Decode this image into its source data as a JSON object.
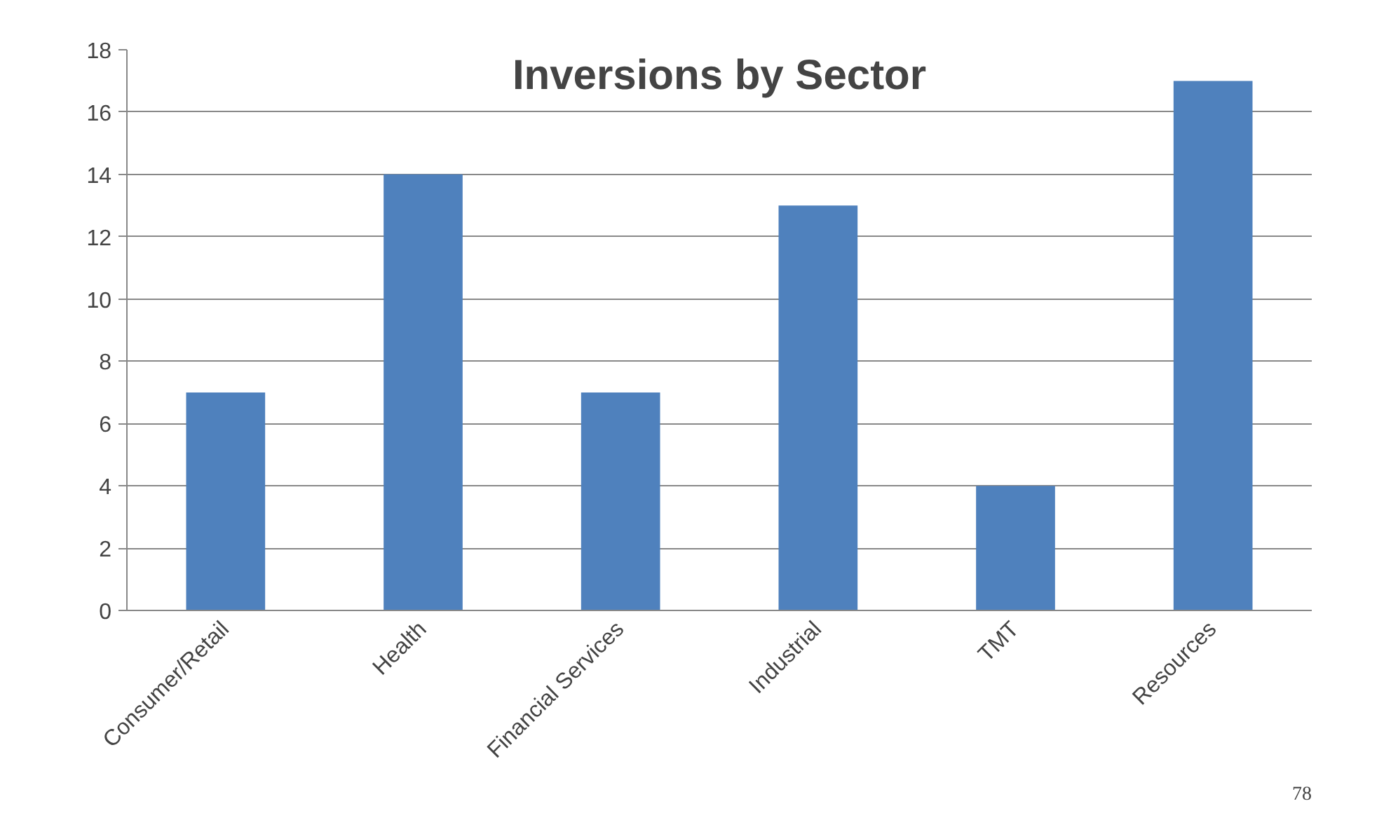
{
  "chart_data": {
    "type": "bar",
    "title": "Inversions by Sector",
    "categories": [
      "Consumer/Retail",
      "Health",
      "Financial Services",
      "Industrial",
      "TMT",
      "Resources"
    ],
    "values": [
      7,
      14,
      7,
      13,
      4,
      17
    ],
    "color": "#4f81bd",
    "ylim": [
      0,
      18
    ],
    "yticks": [
      0,
      2,
      4,
      6,
      8,
      10,
      12,
      14,
      16,
      18
    ],
    "grid": "y",
    "annotations": [
      "78"
    ]
  }
}
